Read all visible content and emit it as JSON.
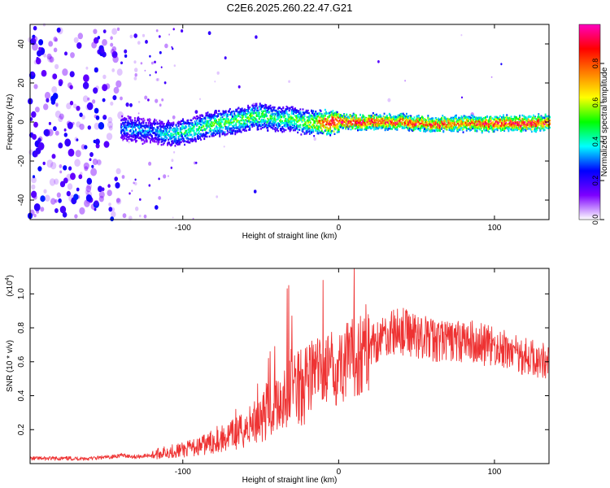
{
  "figure_title": "C2E6.2025.260.22.47.G21",
  "chart_data": [
    {
      "type": "heatmap",
      "name": "spectrogram",
      "xlabel": "Height of straight line (km)",
      "ylabel": "Frequency (Hz)",
      "xlim": [
        -198,
        135
      ],
      "ylim": [
        -50,
        50
      ],
      "xticks": [
        -100,
        0,
        100
      ],
      "yticks": [
        -40,
        -20,
        0,
        20,
        40
      ],
      "xtick_labels": [
        "-100",
        "0",
        "100"
      ],
      "ytick_labels": [
        "-40",
        "-20",
        "0",
        "20",
        "40"
      ],
      "colorbar": {
        "label": "Normalized spectral amplitude",
        "range": [
          0,
          1
        ],
        "ticks": [
          0.0,
          0.2,
          0.4,
          0.6,
          0.8
        ],
        "tick_labels": [
          "0.0",
          "0.2",
          "0.4",
          "0.6",
          "0.8"
        ],
        "colormap": [
          "#ffffff",
          "#7d00ff",
          "#0000ff",
          "#00ffff",
          "#00ff00",
          "#ffff00",
          "#ff8000",
          "#ff0000",
          "#ff00c0"
        ]
      },
      "ridge": {
        "description": "signal ridge frequency (Hz) vs height (km)",
        "x": [
          -140,
          -130,
          -120,
          -110,
          -100,
          -90,
          -80,
          -70,
          -60,
          -50,
          -40,
          -30,
          -20,
          -10,
          0,
          20,
          40,
          60,
          80,
          100,
          120,
          135
        ],
        "y": [
          -3,
          -4,
          -5,
          -6,
          -5,
          -3,
          -1,
          0,
          2,
          3,
          1,
          2,
          -1,
          0,
          0,
          0,
          0,
          -1,
          -1,
          -1,
          -1,
          0
        ],
        "amplitude": [
          0.3,
          0.35,
          0.3,
          0.4,
          0.45,
          0.45,
          0.5,
          0.5,
          0.5,
          0.5,
          0.45,
          0.5,
          0.55,
          0.8,
          0.9,
          0.9,
          0.85,
          0.85,
          0.8,
          0.9,
          0.9,
          0.85
        ]
      }
    },
    {
      "type": "line",
      "name": "snr",
      "xlabel": "Height of straight line (km)",
      "ylabel": "SNR (10 * v/v)",
      "y_scale_label": "(x10",
      "y_scale_exponent": "4",
      "xlim": [
        -198,
        135
      ],
      "ylim": [
        0,
        1.15
      ],
      "xticks": [
        -100,
        0,
        100
      ],
      "yticks": [
        0.2,
        0.4,
        0.6,
        0.8,
        1.0
      ],
      "xtick_labels": [
        "-100",
        "0",
        "100"
      ],
      "ytick_labels": [
        "0.2",
        "0.4",
        "0.6",
        "0.8",
        "1.0"
      ],
      "color": "#ee3333",
      "series": [
        {
          "name": "SNR",
          "x": [
            -198,
            -180,
            -160,
            -145,
            -140,
            -130,
            -120,
            -110,
            -100,
            -90,
            -80,
            -70,
            -60,
            -50,
            -40,
            -30,
            -20,
            -10,
            0,
            10,
            20,
            30,
            40,
            50,
            60,
            70,
            80,
            90,
            100,
            110,
            120,
            135
          ],
          "y": [
            0.03,
            0.03,
            0.03,
            0.04,
            0.05,
            0.04,
            0.05,
            0.07,
            0.08,
            0.1,
            0.13,
            0.16,
            0.2,
            0.28,
            0.36,
            0.45,
            0.52,
            0.55,
            0.57,
            0.62,
            0.7,
            0.76,
            0.78,
            0.76,
            0.73,
            0.72,
            0.72,
            0.71,
            0.68,
            0.66,
            0.63,
            0.6
          ]
        }
      ],
      "spikes": {
        "x": [
          -78,
          -66,
          -52,
          -45,
          -44,
          -41,
          -33,
          -32,
          -30,
          -10,
          10
        ],
        "y": [
          0.22,
          0.32,
          0.47,
          0.62,
          0.66,
          0.69,
          1.03,
          1.05,
          0.87,
          1.08,
          1.15
        ]
      }
    }
  ]
}
